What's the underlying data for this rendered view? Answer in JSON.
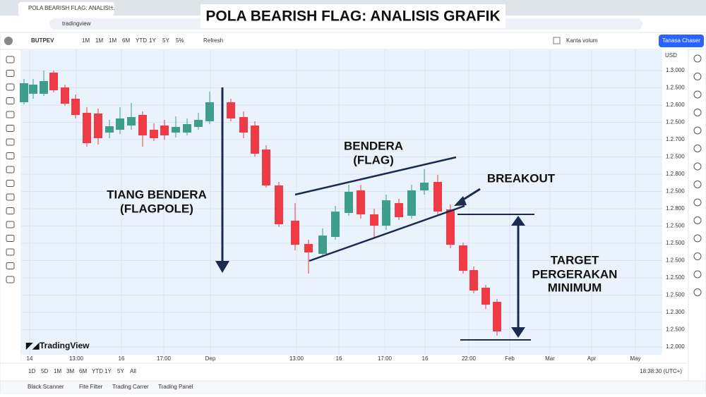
{
  "browser": {
    "tab_title": "POLA BEARISH FLAG: ANALISI...",
    "banner": "POLA BEARISH FLAG: ANALISIS GRAFIK",
    "url": "tradingview"
  },
  "toolbar": {
    "symbol": "BUTPEV",
    "intervals": [
      "1M",
      "1M",
      "1M",
      "6M",
      "YTD",
      "1Y",
      "5Y",
      "5%"
    ],
    "refresh": "Refresh",
    "compare": "Kanta volum",
    "button": "Tanasa Chaser"
  },
  "chart": {
    "currency": "USD",
    "price_labels": [
      "1.3.000",
      "1.2.500",
      "1.2.600",
      "1.2.500",
      "1.2.700",
      "1.2.500",
      "1.2.800",
      "1.2.500",
      "1.2.800",
      "1.2.500",
      "1.2.500",
      "1.2.500",
      "1.2.500",
      "1.2.500",
      "1.2.300",
      "1.2.500",
      "1.2.000"
    ],
    "time_labels": [
      "14",
      "13:00",
      "16",
      "17:00",
      "Dep",
      "13:00",
      "16",
      "17:00",
      "16",
      "22:00",
      "Feb",
      "Mar",
      "Apr",
      "May"
    ],
    "annotations": {
      "flagpole": [
        "TIANG BENDERA",
        "(FLAGPOLE)"
      ],
      "flag": [
        "BENDERA",
        "(FLAG)"
      ],
      "breakout": "BREAKOUT",
      "target": [
        "TARGET",
        "PERGERAKAN",
        "MINIMUM"
      ]
    },
    "logo": "TradingView"
  },
  "bottom": {
    "ranges": [
      "1D",
      "5D",
      "1M",
      "3M",
      "6M",
      "YTD",
      "1Y",
      "5Y",
      "All"
    ],
    "time": "18:38:30 (UTC+)"
  },
  "panel": {
    "tabs": [
      "Black Scanner",
      "Fite Filter",
      "Trading Carrer",
      "Trading Panel"
    ]
  }
}
